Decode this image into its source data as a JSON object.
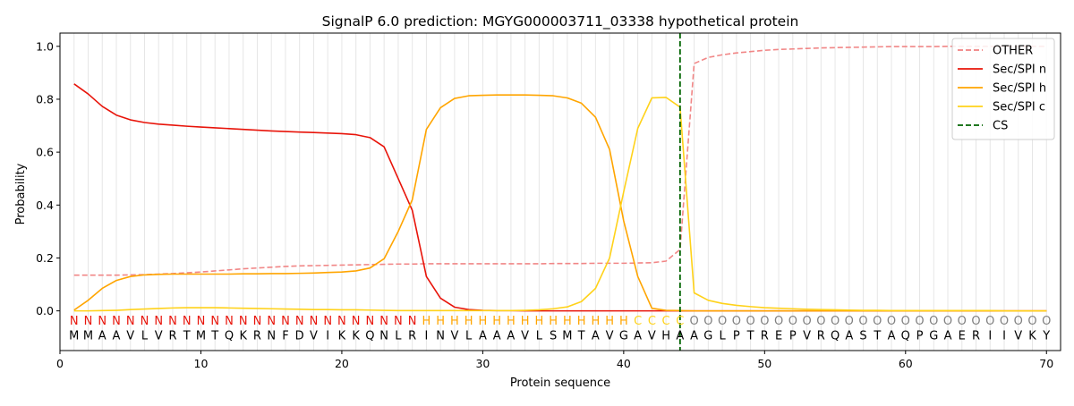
{
  "chart_data": {
    "type": "line",
    "title": "SignalP 6.0 prediction: MGYG000003711_03338 hypothetical protein",
    "xlabel": "Protein sequence",
    "ylabel": "Probability",
    "xlim": [
      0,
      71
    ],
    "ylim": [
      -0.15,
      1.05
    ],
    "x_ticks": [
      0,
      10,
      20,
      30,
      40,
      50,
      60,
      70
    ],
    "y_ticks": [
      0.0,
      0.2,
      0.4,
      0.6,
      0.8,
      1.0
    ],
    "grid": "vertical lines at every residue",
    "legend_placement": "top-right",
    "sequence": [
      "M",
      "M",
      "A",
      "A",
      "V",
      "L",
      "V",
      "R",
      "T",
      "M",
      "T",
      "Q",
      "K",
      "R",
      "N",
      "F",
      "D",
      "V",
      "I",
      "K",
      "K",
      "Q",
      "N",
      "L",
      "R",
      "I",
      "N",
      "V",
      "L",
      "A",
      "A",
      "A",
      "V",
      "L",
      "S",
      "M",
      "T",
      "A",
      "V",
      "G",
      "A",
      "V",
      "H",
      "A",
      "A",
      "G",
      "L",
      "P",
      "T",
      "R",
      "E",
      "P",
      "V",
      "R",
      "Q",
      "A",
      "S",
      "T",
      "A",
      "Q",
      "P",
      "G",
      "A",
      "E",
      "R",
      "I",
      "I",
      "V",
      "K",
      "Y"
    ],
    "region_labels": [
      "N",
      "N",
      "N",
      "N",
      "N",
      "N",
      "N",
      "N",
      "N",
      "N",
      "N",
      "N",
      "N",
      "N",
      "N",
      "N",
      "N",
      "N",
      "N",
      "N",
      "N",
      "N",
      "N",
      "N",
      "N",
      "H",
      "H",
      "H",
      "H",
      "H",
      "H",
      "H",
      "H",
      "H",
      "H",
      "H",
      "H",
      "H",
      "H",
      "H",
      "C",
      "C",
      "C",
      "C",
      "O",
      "O",
      "O",
      "O",
      "O",
      "O",
      "O",
      "O",
      "O",
      "O",
      "O",
      "O",
      "O",
      "O",
      "O",
      "O",
      "O",
      "O",
      "O",
      "O",
      "O",
      "O",
      "O",
      "O",
      "O",
      "O"
    ],
    "cleavage_site": 44,
    "series": [
      {
        "name": "OTHER",
        "color": "#f08080",
        "dashed": true,
        "values": [
          0.135,
          0.135,
          0.135,
          0.135,
          0.136,
          0.137,
          0.139,
          0.141,
          0.144,
          0.147,
          0.151,
          0.155,
          0.159,
          0.162,
          0.165,
          0.168,
          0.17,
          0.171,
          0.172,
          0.173,
          0.174,
          0.175,
          0.176,
          0.177,
          0.177,
          0.178,
          0.178,
          0.178,
          0.178,
          0.178,
          0.178,
          0.178,
          0.178,
          0.178,
          0.179,
          0.179,
          0.179,
          0.18,
          0.18,
          0.18,
          0.181,
          0.182,
          0.188,
          0.232,
          0.935,
          0.958,
          0.968,
          0.975,
          0.98,
          0.985,
          0.988,
          0.99,
          0.992,
          0.994,
          0.995,
          0.996,
          0.997,
          0.998,
          0.999,
          0.999,
          0.999,
          0.999,
          1.0,
          1.0,
          1.0,
          1.0,
          1.0,
          1.0,
          1.0,
          1.0
        ]
      },
      {
        "name": "Sec/SPI n",
        "color": "#e8140a",
        "dashed": false,
        "values": [
          0.858,
          0.82,
          0.773,
          0.74,
          0.722,
          0.712,
          0.706,
          0.702,
          0.698,
          0.695,
          0.692,
          0.689,
          0.686,
          0.683,
          0.68,
          0.678,
          0.676,
          0.674,
          0.672,
          0.67,
          0.666,
          0.655,
          0.62,
          0.5,
          0.38,
          0.13,
          0.048,
          0.014,
          0.005,
          0.002,
          0.001,
          0.001,
          0.0,
          0.0,
          0.0,
          0.0,
          0.0,
          0.0,
          0.0,
          0.0,
          0.0,
          0.0,
          0.0,
          0.0,
          0.0,
          0.0,
          0.0,
          0.0,
          0.0,
          0.0,
          0.0,
          0.0,
          0.0,
          0.0,
          0.0,
          0.0,
          0.0,
          0.0,
          0.0,
          0.0,
          0.0,
          0.0,
          0.0,
          0.0,
          0.0,
          0.0,
          0.0,
          0.0,
          0.0,
          0.0
        ]
      },
      {
        "name": "Sec/SPI h",
        "color": "#ffa500",
        "dashed": false,
        "values": [
          0.003,
          0.04,
          0.085,
          0.115,
          0.13,
          0.136,
          0.138,
          0.139,
          0.139,
          0.139,
          0.139,
          0.139,
          0.14,
          0.14,
          0.141,
          0.141,
          0.142,
          0.143,
          0.145,
          0.147,
          0.151,
          0.162,
          0.197,
          0.3,
          0.42,
          0.686,
          0.768,
          0.803,
          0.813,
          0.815,
          0.816,
          0.816,
          0.816,
          0.815,
          0.813,
          0.805,
          0.785,
          0.732,
          0.61,
          0.34,
          0.13,
          0.01,
          0.002,
          0.001,
          0.0,
          0.0,
          0.0,
          0.0,
          0.0,
          0.0,
          0.0,
          0.0,
          0.0,
          0.0,
          0.0,
          0.0,
          0.0,
          0.0,
          0.0,
          0.0,
          0.0,
          0.0,
          0.0,
          0.0,
          0.0,
          0.0,
          0.0,
          0.0,
          0.0,
          0.0
        ]
      },
      {
        "name": "Sec/SPI c",
        "color": "#ffd21a",
        "dashed": false,
        "values": [
          0.0,
          0.0,
          0.001,
          0.002,
          0.005,
          0.007,
          0.009,
          0.011,
          0.012,
          0.012,
          0.012,
          0.011,
          0.01,
          0.009,
          0.008,
          0.007,
          0.006,
          0.005,
          0.005,
          0.004,
          0.004,
          0.003,
          0.002,
          0.001,
          0.001,
          0.001,
          0.001,
          0.001,
          0.001,
          0.001,
          0.001,
          0.001,
          0.002,
          0.004,
          0.008,
          0.015,
          0.035,
          0.085,
          0.2,
          0.45,
          0.69,
          0.805,
          0.807,
          0.77,
          0.068,
          0.04,
          0.028,
          0.021,
          0.016,
          0.012,
          0.01,
          0.008,
          0.006,
          0.005,
          0.004,
          0.003,
          0.002,
          0.002,
          0.001,
          0.001,
          0.001,
          0.001,
          0.001,
          0.001,
          0.001,
          0.001,
          0.0,
          0.0,
          0.0,
          0.0
        ]
      },
      {
        "name": "CS",
        "color": "#006400",
        "dashed": true,
        "values": []
      }
    ],
    "region_colors": {
      "N": "#e8140a",
      "H": "#ffa500",
      "C": "#ffd21a",
      "O": "#808080"
    }
  }
}
